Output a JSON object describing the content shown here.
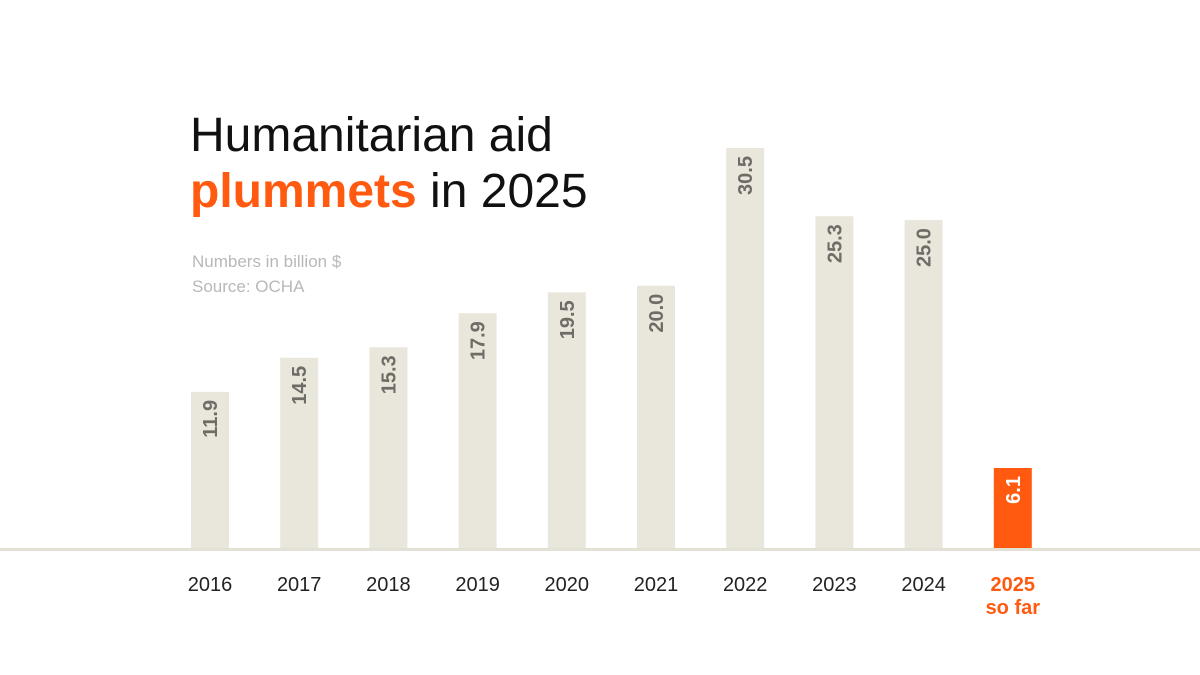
{
  "title": {
    "line1": "Humanitarian aid",
    "highlight": "plummets",
    "line2_rest": " in 2025"
  },
  "subtitle": {
    "units": "Numbers in billion $",
    "source": "Source: OCHA"
  },
  "colors": {
    "bar": "#e9e6dc",
    "highlight": "#ff5a0f",
    "baseline": "#e3e0d6",
    "value_text": "#6e6c66"
  },
  "chart_data": {
    "type": "bar",
    "title": "Humanitarian aid plummets in 2025",
    "subtitle": "Numbers in billion $",
    "source": "Source: OCHA",
    "categories": [
      "2016",
      "2017",
      "2018",
      "2019",
      "2020",
      "2021",
      "2022",
      "2023",
      "2024",
      "2025"
    ],
    "category_sublabels": [
      "",
      "",
      "",
      "",
      "",
      "",
      "",
      "",
      "",
      "so far"
    ],
    "values": [
      11.9,
      14.5,
      15.3,
      17.9,
      19.5,
      20.0,
      30.5,
      25.3,
      25.0,
      6.1
    ],
    "value_labels": [
      "11.9",
      "14.5",
      "15.3",
      "17.9",
      "19.5",
      "20.0",
      "30.5",
      "25.3",
      "25.0",
      "6.1"
    ],
    "highlight_index": 9,
    "xlabel": "",
    "ylabel": "Numbers in billion $",
    "ylim": [
      0,
      30.5
    ],
    "grid": false,
    "legend": "none"
  }
}
